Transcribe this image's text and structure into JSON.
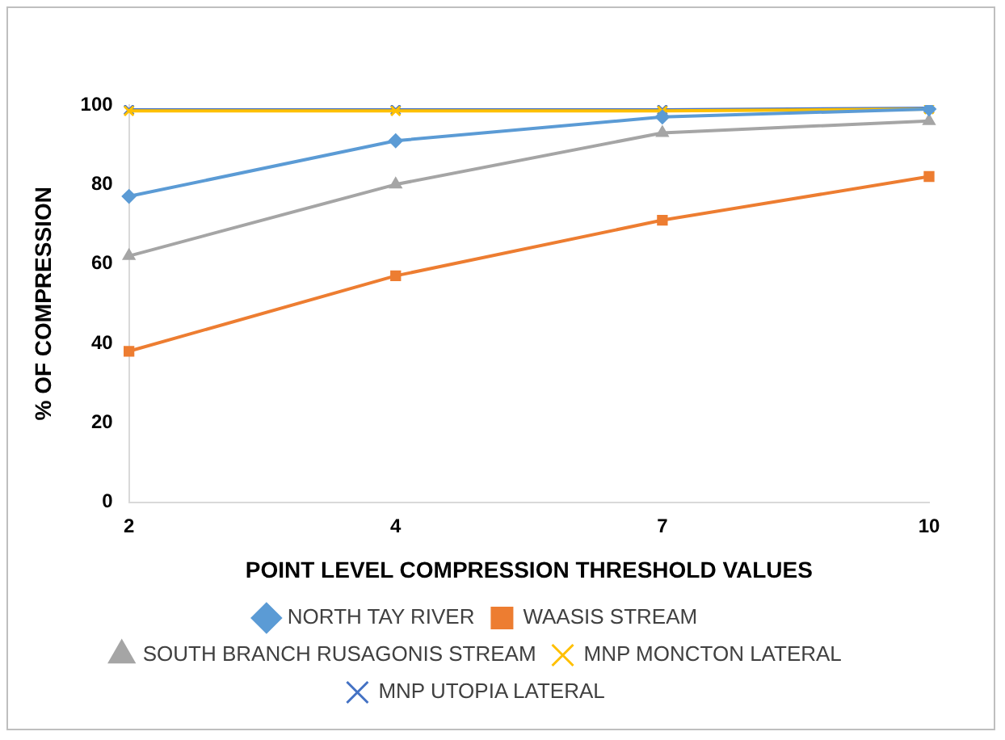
{
  "chart_data": {
    "type": "line",
    "xlabel": "POINT LEVEL COMPRESSION THRESHOLD VALUES",
    "ylabel": "% OF COMPRESSION",
    "categories": [
      "2",
      "4",
      "7",
      "10"
    ],
    "series": [
      {
        "name": "NORTH TAY RIVER",
        "color": "#5b9bd5",
        "marker": "diamond",
        "values": [
          77,
          91,
          97,
          99
        ]
      },
      {
        "name": "WAASIS STREAM",
        "color": "#ed7d31",
        "marker": "square",
        "values": [
          38,
          57,
          71,
          82
        ]
      },
      {
        "name": "SOUTH BRANCH RUSAGONIS STREAM",
        "color": "#a5a5a5",
        "marker": "triangle",
        "values": [
          62,
          80,
          93,
          96
        ]
      },
      {
        "name": "MNP MONCTON LATERAL",
        "color": "#ffc000",
        "marker": "cross",
        "values": [
          98.5,
          98.5,
          98.5,
          99
        ]
      },
      {
        "name": "MNP UTOPIA LATERAL",
        "color": "#4472c4",
        "marker": "cross",
        "values": [
          98.8,
          98.8,
          98.8,
          99.2
        ]
      }
    ],
    "ylim": [
      0,
      100
    ],
    "yticks": [
      0,
      20,
      40,
      60,
      80,
      100
    ],
    "grid": false,
    "legend": "bottom"
  }
}
